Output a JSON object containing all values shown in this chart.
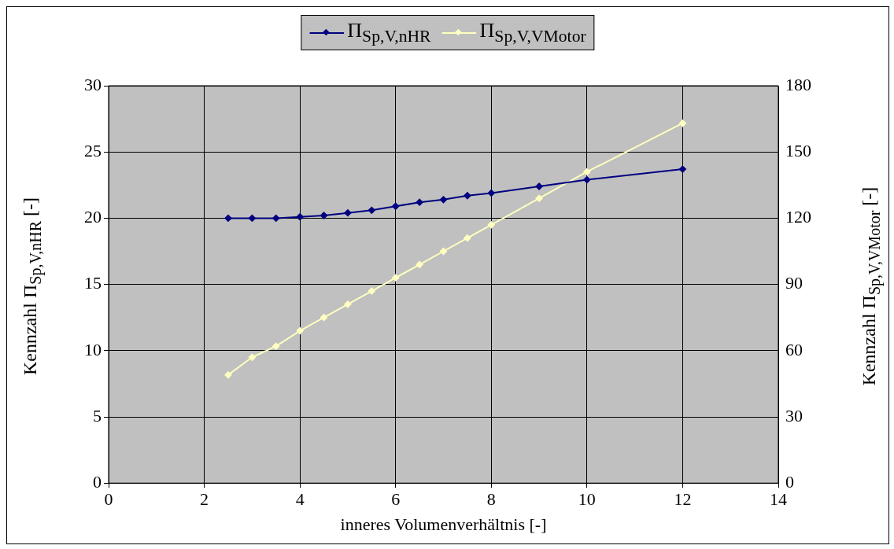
{
  "chart_data": {
    "type": "line",
    "xlabel": "inneres Volumenverhältnis [-]",
    "ylabel": "Kennzahl Π$_{Sp,V,nHR}$     [-]",
    "y2label": "Kennzahl Π$_{Sp,V,VMotor}$     [-]",
    "x": [
      2.5,
      3,
      3.5,
      4,
      4.5,
      5,
      5.5,
      6,
      6.5,
      7,
      7.5,
      8,
      9,
      10,
      12
    ],
    "series": [
      {
        "name": "Π$_{Sp,V,nHR}$",
        "color": "#000080",
        "values": [
          20.0,
          20.0,
          20.0,
          20.1,
          20.2,
          20.4,
          20.6,
          20.9,
          21.2,
          21.4,
          21.7,
          21.9,
          22.4,
          22.9,
          23.7
        ]
      },
      {
        "name": "Π$_{Sp,V,VMotor}$",
        "color": "#ffffc0",
        "axis": "y2",
        "values": [
          49,
          57,
          62,
          69,
          75,
          81,
          87,
          93,
          99,
          105,
          111,
          117,
          129,
          141,
          163
        ]
      }
    ],
    "xlim": [
      0,
      14
    ],
    "xticks": [
      0,
      2,
      4,
      6,
      8,
      10,
      12,
      14
    ],
    "ylim": [
      0,
      30
    ],
    "yticks": [
      0,
      5,
      10,
      15,
      20,
      25,
      30
    ],
    "y2lim": [
      0,
      180
    ],
    "y2ticks": [
      0,
      30,
      60,
      90,
      120,
      150,
      180
    ],
    "grid": true,
    "legend": "top",
    "marker": "diamond",
    "line_style": "solid"
  }
}
